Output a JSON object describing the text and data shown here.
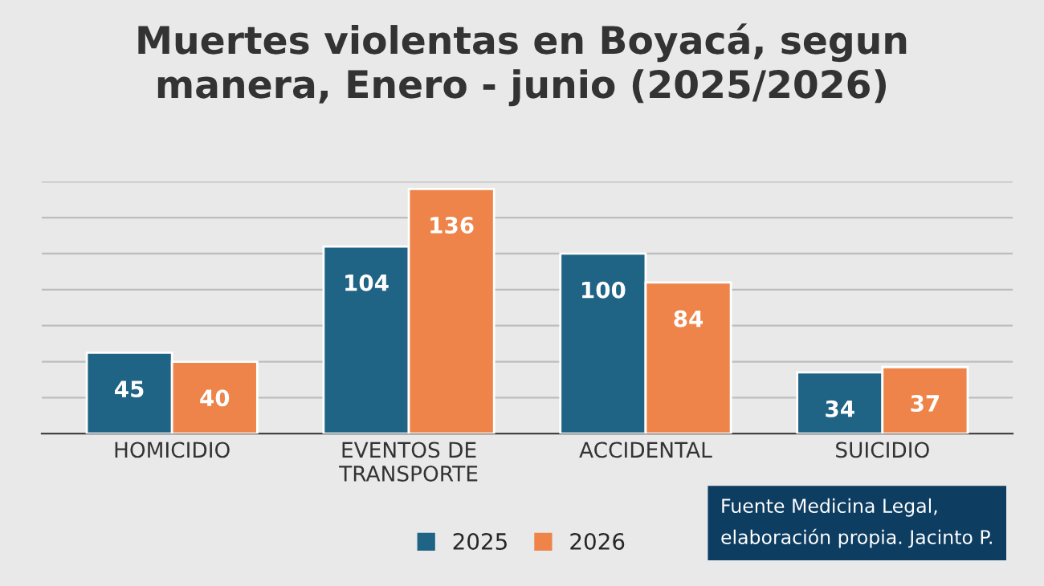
{
  "chart_data": {
    "type": "bar",
    "title": "Muertes violentas en Boyacá, segun\nmanera, Enero - junio (2025/2026)",
    "categories": [
      "HOMICIDIO",
      "EVENTOS DE\nTRANSPORTE",
      "ACCIDENTAL",
      "SUICIDIO"
    ],
    "series": [
      {
        "name": "2025",
        "color": "#1f6385",
        "values": [
          45,
          104,
          100,
          34
        ]
      },
      {
        "name": "2026",
        "color": "#ee8449",
        "values": [
          40,
          136,
          84,
          37
        ]
      }
    ],
    "ylim": [
      0,
      140
    ],
    "yticks": [
      {
        "value": 0,
        "label": null
      },
      {
        "value": 20,
        "label": null
      },
      {
        "value": 40,
        "label": null
      },
      {
        "value": 60,
        "label": null
      },
      {
        "value": 80,
        "label": null
      },
      {
        "value": 100,
        "label": null
      },
      {
        "value": 120,
        "label": null
      },
      {
        "value": 140,
        "label": null
      }
    ],
    "tick_labels": "x",
    "grid": "y",
    "legend": "bottom",
    "data_labels": true,
    "annotations": [
      "Fuente Medicina Legal,\nelaboración propia. Jacinto P."
    ]
  }
}
